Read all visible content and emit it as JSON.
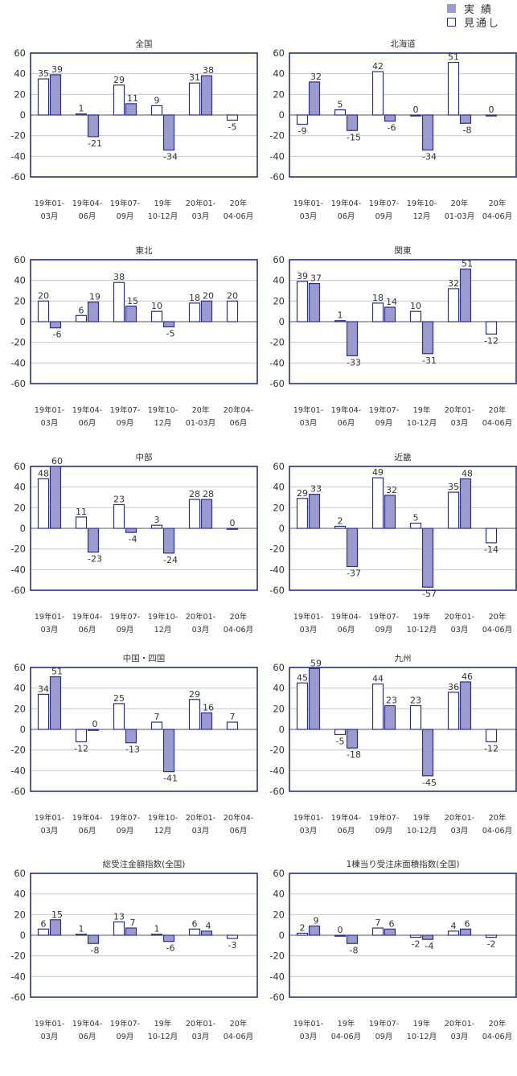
{
  "legend": {
    "actual_label": "実 績",
    "forecast_label": "見通し",
    "actual_color": "#9b9bcf",
    "forecast_color": "#ffffff",
    "frame_color": "#2a2f88"
  },
  "chart_data": [
    {
      "type": "bar",
      "title": "全国",
      "ylim": [
        -60,
        60
      ],
      "yticks": [
        60,
        40,
        20,
        0,
        -20,
        -40,
        -60
      ],
      "categories": [
        [
          "19年01-",
          "03月"
        ],
        [
          "19年04-",
          "06月"
        ],
        [
          "19年07-",
          "09月"
        ],
        [
          "19年",
          "10-12月"
        ],
        [
          "20年01-",
          "03月"
        ],
        [
          "20年",
          "04-06月"
        ]
      ],
      "series": [
        {
          "name": "見通し",
          "values": [
            35,
            1,
            29,
            9,
            31,
            -5
          ]
        },
        {
          "name": "実 績",
          "values": [
            39,
            -21,
            11,
            -34,
            38,
            null
          ]
        }
      ]
    },
    {
      "type": "bar",
      "title": "北海道",
      "ylim": [
        -60,
        60
      ],
      "yticks": [
        60,
        40,
        20,
        0,
        -20,
        -40,
        -60
      ],
      "categories": [
        [
          "19年01-",
          "03月"
        ],
        [
          "19年04-",
          "06月"
        ],
        [
          "19年07-",
          "09月"
        ],
        [
          "19年10-",
          "12月"
        ],
        [
          "20年",
          "01-03月"
        ],
        [
          "20年",
          "04-06月"
        ]
      ],
      "series": [
        {
          "name": "見通し",
          "values": [
            -9,
            5,
            42,
            0,
            51,
            0
          ]
        },
        {
          "name": "実 績",
          "values": [
            32,
            -15,
            -6,
            -34,
            -8,
            null
          ]
        }
      ]
    },
    {
      "type": "bar",
      "title": "東北",
      "ylim": [
        -60,
        60
      ],
      "yticks": [
        60,
        40,
        20,
        0,
        -20,
        -40,
        -60
      ],
      "categories": [
        [
          "19年01-",
          "03月"
        ],
        [
          "19年04-",
          "06月"
        ],
        [
          "19年07-",
          "09月"
        ],
        [
          "19年10-",
          "12月"
        ],
        [
          "20年",
          "01-03月"
        ],
        [
          "20年04-",
          "06月"
        ]
      ],
      "series": [
        {
          "name": "見通し",
          "values": [
            20,
            6,
            38,
            10,
            18,
            20
          ]
        },
        {
          "name": "実 績",
          "values": [
            -6,
            19,
            15,
            -5,
            20,
            null
          ]
        }
      ]
    },
    {
      "type": "bar",
      "title": "関東",
      "ylim": [
        -60,
        60
      ],
      "yticks": [
        60,
        40,
        20,
        0,
        -20,
        -40,
        -60
      ],
      "categories": [
        [
          "19年01-",
          "03月"
        ],
        [
          "19年04-",
          "06月"
        ],
        [
          "19年07-",
          "09月"
        ],
        [
          "19年",
          "10-12月"
        ],
        [
          "20年01-",
          "03月"
        ],
        [
          "20年",
          "04-06月"
        ]
      ],
      "series": [
        {
          "name": "見通し",
          "values": [
            39,
            1,
            18,
            10,
            32,
            -12
          ]
        },
        {
          "name": "実 績",
          "values": [
            37,
            -33,
            14,
            -31,
            51,
            null
          ]
        }
      ]
    },
    {
      "type": "bar",
      "title": "中部",
      "ylim": [
        -60,
        60
      ],
      "yticks": [
        60,
        40,
        20,
        0,
        -20,
        -40,
        -60
      ],
      "categories": [
        [
          "19年01-",
          "03月"
        ],
        [
          "19年04-",
          "06月"
        ],
        [
          "19年07-",
          "09月"
        ],
        [
          "19年10-",
          "12月"
        ],
        [
          "20年01-",
          "03月"
        ],
        [
          "20年",
          "04-06月"
        ]
      ],
      "series": [
        {
          "name": "見通し",
          "values": [
            48,
            11,
            23,
            3,
            28,
            0
          ]
        },
        {
          "name": "実 績",
          "values": [
            60,
            -23,
            -4,
            -24,
            28,
            null
          ]
        }
      ]
    },
    {
      "type": "bar",
      "title": "近畿",
      "ylim": [
        -60,
        60
      ],
      "yticks": [
        60,
        40,
        20,
        0,
        -20,
        -40,
        -60
      ],
      "categories": [
        [
          "19年01-",
          "03月"
        ],
        [
          "19年04-",
          "06月"
        ],
        [
          "19年07-",
          "09月"
        ],
        [
          "19年",
          "10-12月"
        ],
        [
          "20年01-",
          "03月"
        ],
        [
          "20年",
          "04-06月"
        ]
      ],
      "series": [
        {
          "name": "見通し",
          "values": [
            29,
            2,
            49,
            5,
            35,
            -14
          ]
        },
        {
          "name": "実 績",
          "values": [
            33,
            -37,
            32,
            -57,
            48,
            null
          ]
        }
      ]
    },
    {
      "type": "bar",
      "title": "中国・四国",
      "ylim": [
        -60,
        60
      ],
      "yticks": [
        60,
        40,
        20,
        0,
        -20,
        -40,
        -60
      ],
      "categories": [
        [
          "19年01-",
          "03月"
        ],
        [
          "19年04-",
          "06月"
        ],
        [
          "19年07-",
          "09月"
        ],
        [
          "19年10-",
          "12月"
        ],
        [
          "20年01-",
          "03月"
        ],
        [
          "20年04-",
          "06月"
        ]
      ],
      "series": [
        {
          "name": "見通し",
          "values": [
            34,
            -12,
            25,
            7,
            29,
            7
          ]
        },
        {
          "name": "実 績",
          "values": [
            51,
            0,
            -13,
            -41,
            16,
            null
          ]
        }
      ]
    },
    {
      "type": "bar",
      "title": "九州",
      "ylim": [
        -60,
        60
      ],
      "yticks": [
        60,
        40,
        20,
        0,
        -20,
        -40,
        -60
      ],
      "categories": [
        [
          "19年01-",
          "03月"
        ],
        [
          "19年04-",
          "06月"
        ],
        [
          "19年07-",
          "09月"
        ],
        [
          "19年",
          "10-12月"
        ],
        [
          "20年01-",
          "03月"
        ],
        [
          "20年",
          "04-06月"
        ]
      ],
      "series": [
        {
          "name": "見通し",
          "values": [
            45,
            -5,
            44,
            23,
            36,
            -12
          ]
        },
        {
          "name": "実 績",
          "values": [
            59,
            -18,
            23,
            -45,
            46,
            null
          ]
        }
      ]
    },
    {
      "type": "bar",
      "title": "総受注金額指数(全国)",
      "ylim": [
        -60,
        60
      ],
      "yticks": [
        60,
        40,
        20,
        0,
        -20,
        -40,
        -60
      ],
      "categories": [
        [
          "19年01-",
          "03月"
        ],
        [
          "19年04-",
          "06月"
        ],
        [
          "19年07-",
          "09月"
        ],
        [
          "19年",
          "10-12月"
        ],
        [
          "20年01-",
          "03月"
        ],
        [
          "20年",
          "04-06月"
        ]
      ],
      "series": [
        {
          "name": "見通し",
          "values": [
            6,
            1,
            13,
            1,
            6,
            -3
          ]
        },
        {
          "name": "実 績",
          "values": [
            15,
            -8,
            7,
            -6,
            4,
            null
          ]
        }
      ]
    },
    {
      "type": "bar",
      "title": "1棟当り受注床面積指数(全国)",
      "ylim": [
        -60,
        60
      ],
      "yticks": [
        60,
        40,
        20,
        0,
        -20,
        -40,
        -60
      ],
      "categories": [
        [
          "19年01-",
          "03月"
        ],
        [
          "19年",
          "04-06月"
        ],
        [
          "19年07-",
          "09月"
        ],
        [
          "19年",
          "10-12月"
        ],
        [
          "20年01-",
          "03月"
        ],
        [
          "20年",
          "04-06月"
        ]
      ],
      "series": [
        {
          "name": "見通し",
          "values": [
            2,
            0,
            7,
            -2,
            4,
            -2
          ]
        },
        {
          "name": "実 績",
          "values": [
            9,
            -8,
            6,
            -4,
            6,
            null
          ]
        }
      ]
    }
  ]
}
